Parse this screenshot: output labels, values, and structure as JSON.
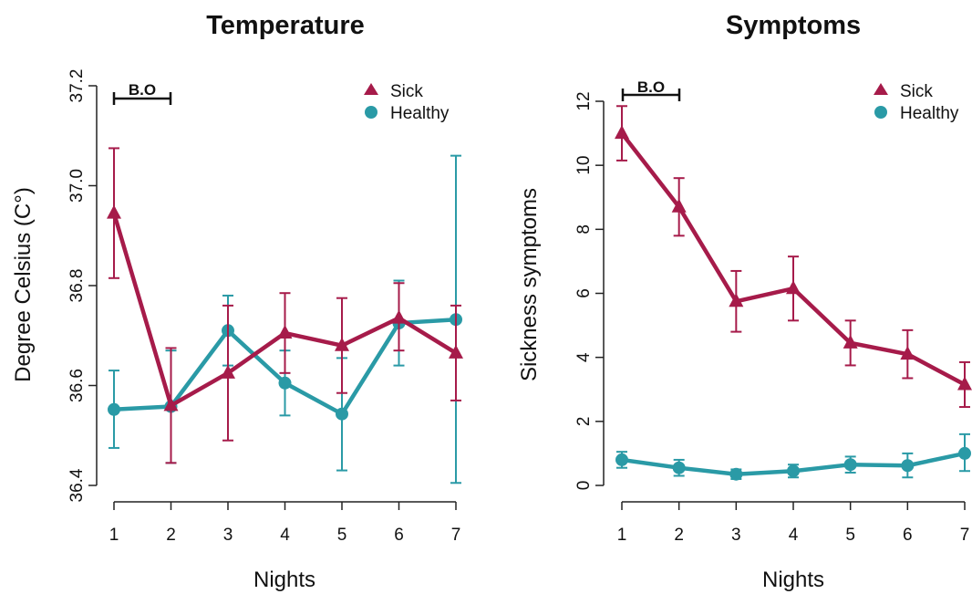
{
  "colors": {
    "sick": "#a61b4a",
    "healthy": "#2a9aa6",
    "axis": "#222222"
  },
  "chart_data": [
    {
      "type": "line",
      "title": "Temperature",
      "xlabel": "Nights",
      "ylabel": "Degree Celsius (C°)",
      "x": [
        1,
        2,
        3,
        4,
        5,
        6,
        7
      ],
      "xlim": [
        1,
        7
      ],
      "ylim": [
        36.4,
        37.2
      ],
      "yticks": [
        36.4,
        36.6,
        36.8,
        37.0,
        37.2
      ],
      "ytick_labels": [
        "36.4",
        "36.6",
        "36.8",
        "37.0",
        "37.2"
      ],
      "xtick_labels": [
        "1",
        "2",
        "3",
        "4",
        "5",
        "6",
        "7"
      ],
      "annotation": {
        "text": "B.O",
        "from": 1,
        "to": 2
      },
      "legend": {
        "position": "top-right",
        "entries": [
          "Sick",
          "Healthy"
        ]
      },
      "series": [
        {
          "name": "Sick",
          "color": "sick",
          "marker": "triangle",
          "values": [
            36.945,
            36.56,
            36.625,
            36.705,
            36.68,
            36.735,
            36.665
          ],
          "err_low": [
            36.815,
            36.445,
            36.49,
            36.625,
            36.585,
            36.67,
            36.57
          ],
          "err_high": [
            37.075,
            36.675,
            36.76,
            36.785,
            36.775,
            36.805,
            36.76
          ]
        },
        {
          "name": "Healthy",
          "color": "healthy",
          "marker": "circle",
          "values": [
            36.552,
            36.558,
            36.71,
            36.605,
            36.543,
            36.725,
            36.732
          ],
          "err_low": [
            36.475,
            36.445,
            36.64,
            36.54,
            36.43,
            36.64,
            36.405
          ],
          "err_high": [
            36.63,
            36.67,
            36.78,
            36.67,
            36.655,
            36.81,
            37.06
          ]
        }
      ]
    },
    {
      "type": "line",
      "title": "Symptoms",
      "xlabel": "Nights",
      "ylabel": "Sickness symptoms",
      "x": [
        1,
        2,
        3,
        4,
        5,
        6,
        7
      ],
      "xlim": [
        1,
        7
      ],
      "ylim": [
        0,
        12
      ],
      "yticks": [
        0,
        2,
        4,
        6,
        8,
        10,
        12
      ],
      "ytick_labels": [
        "0",
        "2",
        "4",
        "6",
        "8",
        "10",
        "12"
      ],
      "xtick_labels": [
        "1",
        "2",
        "3",
        "4",
        "5",
        "6",
        "7"
      ],
      "annotation": {
        "text": "B.O",
        "from": 1,
        "to": 2
      },
      "legend": {
        "position": "top-right",
        "entries": [
          "Sick",
          "Healthy"
        ]
      },
      "series": [
        {
          "name": "Sick",
          "color": "sick",
          "marker": "triangle",
          "values": [
            11.0,
            8.7,
            5.75,
            6.15,
            4.45,
            4.1,
            3.15
          ],
          "err_low": [
            10.15,
            7.8,
            4.8,
            5.15,
            3.75,
            3.35,
            2.45
          ],
          "err_high": [
            11.85,
            9.6,
            6.7,
            7.15,
            5.15,
            4.85,
            3.85
          ]
        },
        {
          "name": "Healthy",
          "color": "healthy",
          "marker": "circle",
          "values": [
            0.8,
            0.55,
            0.35,
            0.45,
            0.65,
            0.62,
            1.0
          ],
          "err_low": [
            0.55,
            0.3,
            0.2,
            0.25,
            0.4,
            0.25,
            0.45
          ],
          "err_high": [
            1.05,
            0.8,
            0.5,
            0.65,
            0.9,
            1.0,
            1.6
          ]
        }
      ]
    }
  ]
}
